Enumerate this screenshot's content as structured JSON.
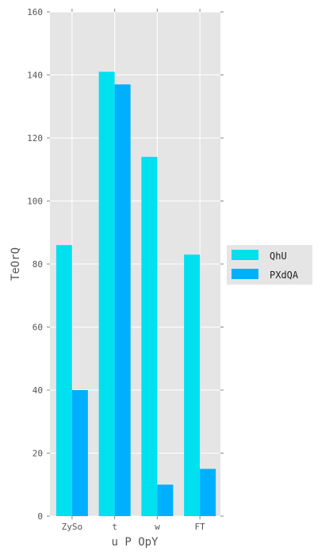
{
  "chart_data": {
    "type": "bar",
    "categories": [
      "ZySo",
      "t",
      "w",
      "FT"
    ],
    "series": [
      {
        "name": "QhU",
        "values": [
          86,
          141,
          114,
          83
        ],
        "color": "#00e0ef"
      },
      {
        "name": "PXdQA",
        "values": [
          40,
          137,
          10,
          15
        ],
        "color": "#00b0ff"
      }
    ],
    "xlabel": "u P OpY",
    "ylabel": "TeOrQ",
    "ylim": [
      0,
      160
    ],
    "yticks": [
      0,
      20,
      40,
      60,
      80,
      100,
      120,
      140,
      160
    ],
    "grid": true,
    "legend_position": "right-outside",
    "colors": {
      "background": "#e5e5e5",
      "grid": "#ffffff",
      "text": "#555555"
    }
  }
}
